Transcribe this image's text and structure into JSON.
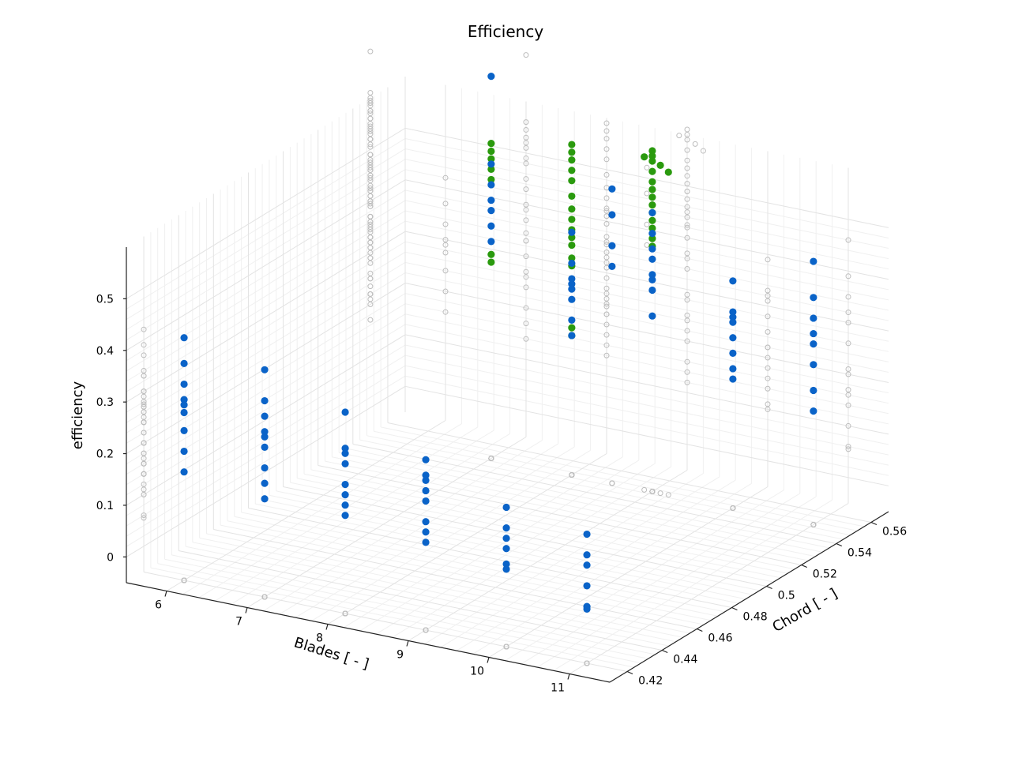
{
  "chart_data": {
    "type": "scatter",
    "title": "Efficiency",
    "xlabel": "Blades [ - ]",
    "ylabel": "Chord [ - ]",
    "zlabel": "efficiency",
    "x_ticks": [
      "6",
      "7",
      "8",
      "9",
      "10",
      "11"
    ],
    "y_ticks": [
      "0.42",
      "0.44",
      "0.46",
      "0.48",
      "0.5",
      "0.52",
      "0.54",
      "0.56"
    ],
    "z_ticks": [
      "0",
      "0.1",
      "0.2",
      "0.3",
      "0.4",
      "0.5"
    ],
    "xlim": [
      5.5,
      11.5
    ],
    "ylim": [
      0.41,
      0.57
    ],
    "zlim": [
      -0.05,
      0.6
    ],
    "grid": true,
    "colors": {
      "pareto": "#2a9a0e",
      "feasible": "#0a63c8",
      "projection": "#bdbdbd"
    },
    "series": [
      {
        "role": "pareto",
        "marker": "filled-circle",
        "points": [
          [
            7,
            0.55,
            0.56
          ],
          [
            7,
            0.55,
            0.545
          ],
          [
            7,
            0.55,
            0.53
          ],
          [
            7,
            0.55,
            0.51
          ],
          [
            7,
            0.55,
            0.49
          ],
          [
            7,
            0.55,
            0.345
          ],
          [
            7,
            0.55,
            0.33
          ],
          [
            8,
            0.55,
            0.59
          ],
          [
            8,
            0.55,
            0.575
          ],
          [
            8,
            0.55,
            0.56
          ],
          [
            8,
            0.55,
            0.54
          ],
          [
            8,
            0.55,
            0.52
          ],
          [
            8,
            0.55,
            0.49
          ],
          [
            8,
            0.55,
            0.465
          ],
          [
            8,
            0.55,
            0.445
          ],
          [
            8,
            0.55,
            0.425
          ],
          [
            8,
            0.55,
            0.41
          ],
          [
            8,
            0.55,
            0.395
          ],
          [
            8,
            0.55,
            0.37
          ],
          [
            8,
            0.55,
            0.355
          ],
          [
            8,
            0.55,
            0.235
          ],
          [
            8,
            0.55,
            0.22
          ],
          [
            9,
            0.55,
            0.61
          ],
          [
            9,
            0.55,
            0.6
          ],
          [
            9,
            0.55,
            0.59
          ],
          [
            9,
            0.55,
            0.57
          ],
          [
            9,
            0.55,
            0.55
          ],
          [
            9,
            0.55,
            0.535
          ],
          [
            9,
            0.55,
            0.52
          ],
          [
            9,
            0.55,
            0.505
          ],
          [
            9,
            0.55,
            0.49
          ],
          [
            9,
            0.55,
            0.475
          ],
          [
            9,
            0.55,
            0.46
          ],
          [
            9,
            0.55,
            0.44
          ],
          [
            9,
            0.55,
            0.425
          ],
          [
            9.1,
            0.55,
            0.585
          ],
          [
            9.2,
            0.55,
            0.575
          ],
          [
            8.9,
            0.55,
            0.595
          ]
        ]
      },
      {
        "role": "feasible",
        "marker": "filled-circle",
        "points": [
          [
            6,
            0.42,
            0.42
          ],
          [
            6,
            0.42,
            0.37
          ],
          [
            6,
            0.42,
            0.33
          ],
          [
            6,
            0.42,
            0.3
          ],
          [
            6,
            0.42,
            0.29
          ],
          [
            6,
            0.42,
            0.275
          ],
          [
            6,
            0.42,
            0.24
          ],
          [
            6,
            0.42,
            0.2
          ],
          [
            6,
            0.42,
            0.16
          ],
          [
            7,
            0.42,
            0.39
          ],
          [
            7,
            0.42,
            0.33
          ],
          [
            7,
            0.42,
            0.3
          ],
          [
            7,
            0.42,
            0.27
          ],
          [
            7,
            0.42,
            0.26
          ],
          [
            7,
            0.42,
            0.24
          ],
          [
            7,
            0.42,
            0.2
          ],
          [
            7,
            0.42,
            0.17
          ],
          [
            7,
            0.42,
            0.14
          ],
          [
            8,
            0.42,
            0.34
          ],
          [
            8,
            0.42,
            0.27
          ],
          [
            8,
            0.42,
            0.26
          ],
          [
            8,
            0.42,
            0.24
          ],
          [
            8,
            0.42,
            0.2
          ],
          [
            8,
            0.42,
            0.18
          ],
          [
            8,
            0.42,
            0.16
          ],
          [
            8,
            0.42,
            0.14
          ],
          [
            9,
            0.42,
            0.28
          ],
          [
            9,
            0.42,
            0.25
          ],
          [
            9,
            0.42,
            0.24
          ],
          [
            9,
            0.42,
            0.22
          ],
          [
            9,
            0.42,
            0.2
          ],
          [
            9,
            0.42,
            0.16
          ],
          [
            9,
            0.42,
            0.14
          ],
          [
            9,
            0.42,
            0.12
          ],
          [
            10,
            0.42,
            0.22
          ],
          [
            10,
            0.42,
            0.18
          ],
          [
            10,
            0.42,
            0.16
          ],
          [
            10,
            0.42,
            0.14
          ],
          [
            10,
            0.42,
            0.11
          ],
          [
            10,
            0.42,
            0.1
          ],
          [
            11,
            0.42,
            0.2
          ],
          [
            11,
            0.42,
            0.16
          ],
          [
            11,
            0.42,
            0.14
          ],
          [
            11,
            0.42,
            0.1
          ],
          [
            11,
            0.42,
            0.06
          ],
          [
            11,
            0.42,
            0.055
          ],
          [
            7,
            0.55,
            0.69
          ],
          [
            7,
            0.55,
            0.52
          ],
          [
            7,
            0.55,
            0.48
          ],
          [
            7,
            0.55,
            0.45
          ],
          [
            7,
            0.55,
            0.43
          ],
          [
            7,
            0.55,
            0.4
          ],
          [
            7,
            0.55,
            0.37
          ],
          [
            8,
            0.55,
            0.42
          ],
          [
            8,
            0.55,
            0.36
          ],
          [
            8,
            0.55,
            0.33
          ],
          [
            8,
            0.55,
            0.32
          ],
          [
            8,
            0.55,
            0.31
          ],
          [
            8,
            0.55,
            0.29
          ],
          [
            8,
            0.55,
            0.25
          ],
          [
            8,
            0.55,
            0.22
          ],
          [
            9,
            0.55,
            0.49
          ],
          [
            9,
            0.55,
            0.45
          ],
          [
            9,
            0.55,
            0.42
          ],
          [
            9,
            0.55,
            0.4
          ],
          [
            9,
            0.55,
            0.37
          ],
          [
            9,
            0.55,
            0.36
          ],
          [
            9,
            0.55,
            0.34
          ],
          [
            9,
            0.55,
            0.29
          ],
          [
            10,
            0.55,
            0.39
          ],
          [
            10,
            0.55,
            0.33
          ],
          [
            10,
            0.55,
            0.32
          ],
          [
            10,
            0.55,
            0.31
          ],
          [
            10,
            0.55,
            0.28
          ],
          [
            10,
            0.55,
            0.25
          ],
          [
            10,
            0.55,
            0.22
          ],
          [
            10,
            0.55,
            0.2
          ],
          [
            11,
            0.55,
            0.46
          ],
          [
            11,
            0.55,
            0.39
          ],
          [
            11,
            0.55,
            0.35
          ],
          [
            11,
            0.55,
            0.32
          ],
          [
            11,
            0.55,
            0.3
          ],
          [
            11,
            0.55,
            0.26
          ],
          [
            11,
            0.55,
            0.21
          ],
          [
            11,
            0.55,
            0.17
          ],
          [
            8.5,
            0.55,
            0.52
          ],
          [
            8.5,
            0.55,
            0.47
          ],
          [
            8.5,
            0.55,
            0.41
          ],
          [
            8.5,
            0.55,
            0.37
          ]
        ]
      }
    ],
    "projections": "grey open-circle projections of all points onto the back walls and floor"
  }
}
